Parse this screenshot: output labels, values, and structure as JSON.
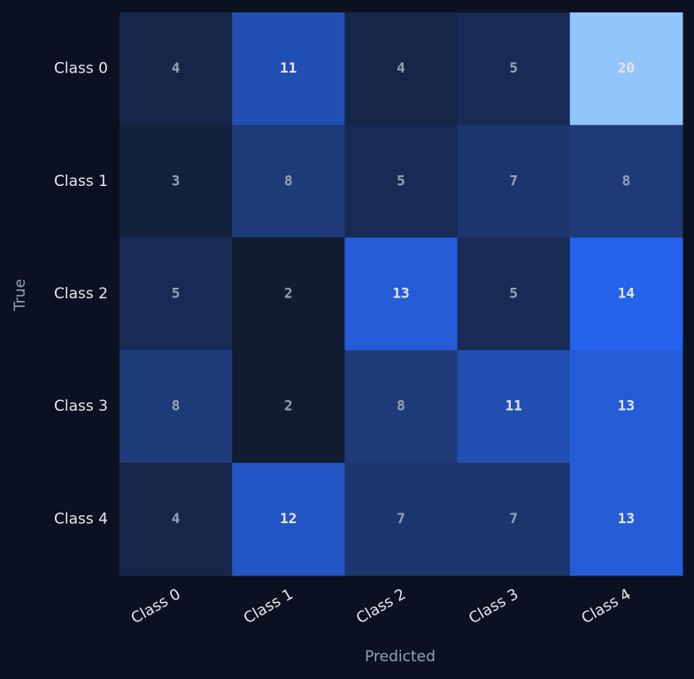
{
  "chart_data": {
    "type": "heatmap",
    "x_label": "Predicted",
    "y_label": "True",
    "x_categories": [
      "Class 0",
      "Class 1",
      "Class 2",
      "Class 3",
      "Class 4"
    ],
    "y_categories": [
      "Class 0",
      "Class 1",
      "Class 2",
      "Class 3",
      "Class 4"
    ],
    "values": [
      [
        4,
        11,
        4,
        5,
        20
      ],
      [
        3,
        8,
        5,
        7,
        8
      ],
      [
        5,
        2,
        13,
        5,
        14
      ],
      [
        8,
        2,
        8,
        11,
        13
      ],
      [
        4,
        12,
        7,
        7,
        13
      ]
    ],
    "colormap": [
      "#111c30",
      "#1e3a78",
      "#2563eb",
      "#93c5fd"
    ]
  }
}
